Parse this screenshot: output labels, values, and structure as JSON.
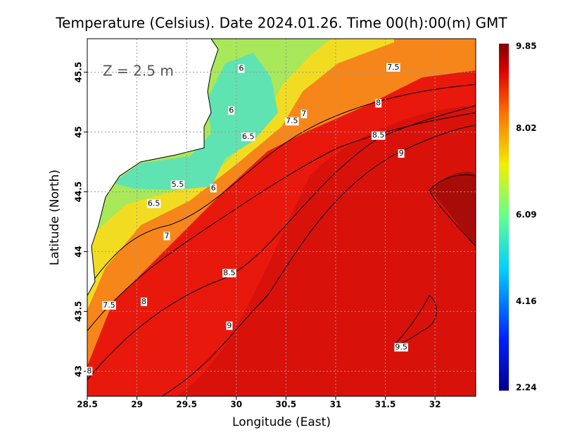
{
  "chart_data": {
    "type": "contour-map",
    "title": "Temperature (Celsius). Date 2024.01.26. Time 00(h):00(m) GMT",
    "annotation": "Z = 2.5 m",
    "xlabel": "Longitude (East)",
    "ylabel": "Latitude (North)",
    "xlim": [
      28.5,
      32.41
    ],
    "ylim": [
      42.79,
      45.78
    ],
    "xticks": [
      28.5,
      29,
      29.5,
      30,
      30.5,
      31,
      31.5,
      32
    ],
    "yticks": [
      43,
      43.5,
      44,
      44.5,
      45,
      45.5
    ],
    "grid": true,
    "colorbar": {
      "lim": [
        2.24,
        9.85
      ],
      "ticks": [
        2.24,
        4.16,
        6.09,
        8.02,
        9.85
      ]
    },
    "contour_labels": [
      {
        "value": 6,
        "lon": 30.05,
        "lat": 45.53
      },
      {
        "value": 7.5,
        "lon": 31.58,
        "lat": 45.54
      },
      {
        "value": 6,
        "lon": 29.95,
        "lat": 45.18
      },
      {
        "value": 7,
        "lon": 30.68,
        "lat": 45.15
      },
      {
        "value": 8,
        "lon": 31.43,
        "lat": 45.24
      },
      {
        "value": 7.5,
        "lon": 30.56,
        "lat": 45.09
      },
      {
        "value": 6.5,
        "lon": 30.12,
        "lat": 44.96
      },
      {
        "value": 8.5,
        "lon": 31.43,
        "lat": 44.97
      },
      {
        "value": 9,
        "lon": 31.66,
        "lat": 44.82
      },
      {
        "value": 5.5,
        "lon": 29.41,
        "lat": 44.56
      },
      {
        "value": 6,
        "lon": 29.77,
        "lat": 44.53
      },
      {
        "value": 6.5,
        "lon": 29.17,
        "lat": 44.4
      },
      {
        "value": 7,
        "lon": 29.3,
        "lat": 44.13
      },
      {
        "value": 8.5,
        "lon": 29.93,
        "lat": 43.82
      },
      {
        "value": 7.5,
        "lon": 28.72,
        "lat": 43.55
      },
      {
        "value": 8,
        "lon": 29.07,
        "lat": 43.58
      },
      {
        "value": 9,
        "lon": 29.93,
        "lat": 43.38
      },
      {
        "value": 9.5,
        "lon": 31.66,
        "lat": 43.2
      },
      {
        "value": 8,
        "lon": 28.52,
        "lat": 43.0
      }
    ]
  }
}
